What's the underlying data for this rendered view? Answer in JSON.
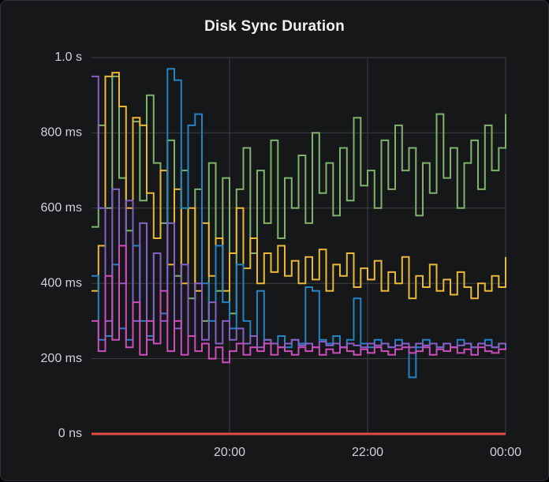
{
  "panel": {
    "title": "Disk Sync Duration"
  },
  "colors": {
    "background": "#161719",
    "grid": "#3c3f43",
    "axis_text": "#cfd2d6",
    "title_text": "#f2f2f2"
  },
  "chart_data": {
    "type": "line",
    "step": true,
    "title": "Disk Sync Duration",
    "xlabel": "",
    "ylabel": "",
    "grid": true,
    "legend": "none",
    "x_start_hour": 18,
    "x_end_hour": 24,
    "x_tick_hours": [
      20,
      22,
      24
    ],
    "x_tick_labels": [
      "20:00",
      "22:00",
      "00:00"
    ],
    "y_tick_values_ms": [
      1000,
      800,
      600,
      400,
      200,
      0
    ],
    "y_tick_labels": [
      "1.0 s",
      "800 ms",
      "600 ms",
      "400 ms",
      "200 ms",
      "0 ns"
    ],
    "ylim_ms": [
      0,
      1000
    ],
    "series": [
      {
        "name": "green",
        "color": "#7EB26D",
        "line_width": 2,
        "values": [
          550,
          820,
          600,
          950,
          680,
          540,
          830,
          620,
          900,
          720,
          560,
          780,
          420,
          700,
          360,
          650,
          300,
          720,
          380,
          680,
          320,
          650,
          760,
          480,
          700,
          560,
          780,
          520,
          680,
          600,
          740,
          560,
          800,
          640,
          720,
          580,
          760,
          620,
          840,
          660,
          700,
          600,
          780,
          650,
          820,
          700,
          760,
          580,
          720,
          640,
          850,
          680,
          760,
          600,
          720,
          780,
          650,
          820,
          700,
          760,
          850
        ]
      },
      {
        "name": "yellow",
        "color": "#EAB839",
        "line_width": 2,
        "values": [
          380,
          500,
          950,
          960,
          870,
          600,
          840,
          820,
          640,
          520,
          700,
          450,
          650,
          400,
          600,
          380,
          560,
          420,
          520,
          380,
          480,
          600,
          440,
          520,
          400,
          480,
          430,
          500,
          420,
          460,
          400,
          470,
          410,
          490,
          380,
          450,
          420,
          480,
          390,
          440,
          410,
          460,
          380,
          430,
          400,
          470,
          360,
          420,
          390,
          450,
          380,
          410,
          370,
          430,
          390,
          360,
          400,
          380,
          420,
          390,
          470
        ]
      },
      {
        "name": "blue",
        "color": "#2383C4",
        "line_width": 2,
        "values": [
          420,
          250,
          260,
          450,
          280,
          250,
          500,
          300,
          260,
          480,
          320,
          970,
          940,
          600,
          820,
          850,
          400,
          300,
          500,
          350,
          280,
          450,
          300,
          260,
          380,
          250,
          240,
          260,
          230,
          250,
          240,
          390,
          380,
          250,
          240,
          260,
          230,
          250,
          360,
          240,
          230,
          250,
          240,
          230,
          250,
          240,
          150,
          230,
          250,
          240,
          230,
          240,
          230,
          250,
          240,
          230,
          240,
          250,
          230,
          240,
          230
        ]
      },
      {
        "name": "purple",
        "color": "#8561C5",
        "line_width": 2,
        "values": [
          950,
          600,
          300,
          650,
          400,
          620,
          300,
          560,
          250,
          480,
          300,
          560,
          280,
          450,
          260,
          400,
          250,
          350,
          240,
          300,
          250,
          280,
          240,
          260,
          230,
          250,
          240,
          230,
          240,
          250,
          235,
          240,
          230,
          245,
          235,
          240,
          230,
          240,
          235,
          230,
          240,
          235,
          240,
          230,
          235,
          240,
          230,
          240,
          235,
          240,
          230,
          240,
          230,
          235,
          240,
          230,
          240,
          235,
          230,
          240,
          235
        ]
      },
      {
        "name": "magenta",
        "color": "#CC4DBB",
        "line_width": 2,
        "values": [
          300,
          220,
          420,
          250,
          500,
          230,
          350,
          210,
          300,
          240,
          380,
          220,
          300,
          210,
          260,
          220,
          240,
          200,
          230,
          190,
          220,
          240,
          210,
          230,
          220,
          240,
          210,
          230,
          220,
          210,
          230,
          220,
          230,
          210,
          225,
          215,
          230,
          220,
          210,
          225,
          215,
          230,
          220,
          210,
          225,
          230,
          215,
          220,
          230,
          210,
          225,
          220,
          230,
          215,
          225,
          210,
          230,
          220,
          215,
          225,
          230
        ]
      },
      {
        "name": "red",
        "color": "#E24D42",
        "line_width": 3,
        "values": [
          0,
          0,
          0,
          0,
          0,
          0,
          0,
          0,
          0,
          0,
          0,
          0,
          0,
          0,
          0,
          0,
          0,
          0,
          0,
          0,
          0,
          0,
          0,
          0,
          0,
          0,
          0,
          0,
          0,
          0,
          0,
          0,
          0,
          0,
          0,
          0,
          0,
          0,
          0,
          0,
          0,
          0,
          0,
          0,
          0,
          0,
          0,
          0,
          0,
          0,
          0,
          0,
          0,
          0,
          0,
          0,
          0,
          0,
          0,
          0,
          0
        ]
      }
    ]
  }
}
